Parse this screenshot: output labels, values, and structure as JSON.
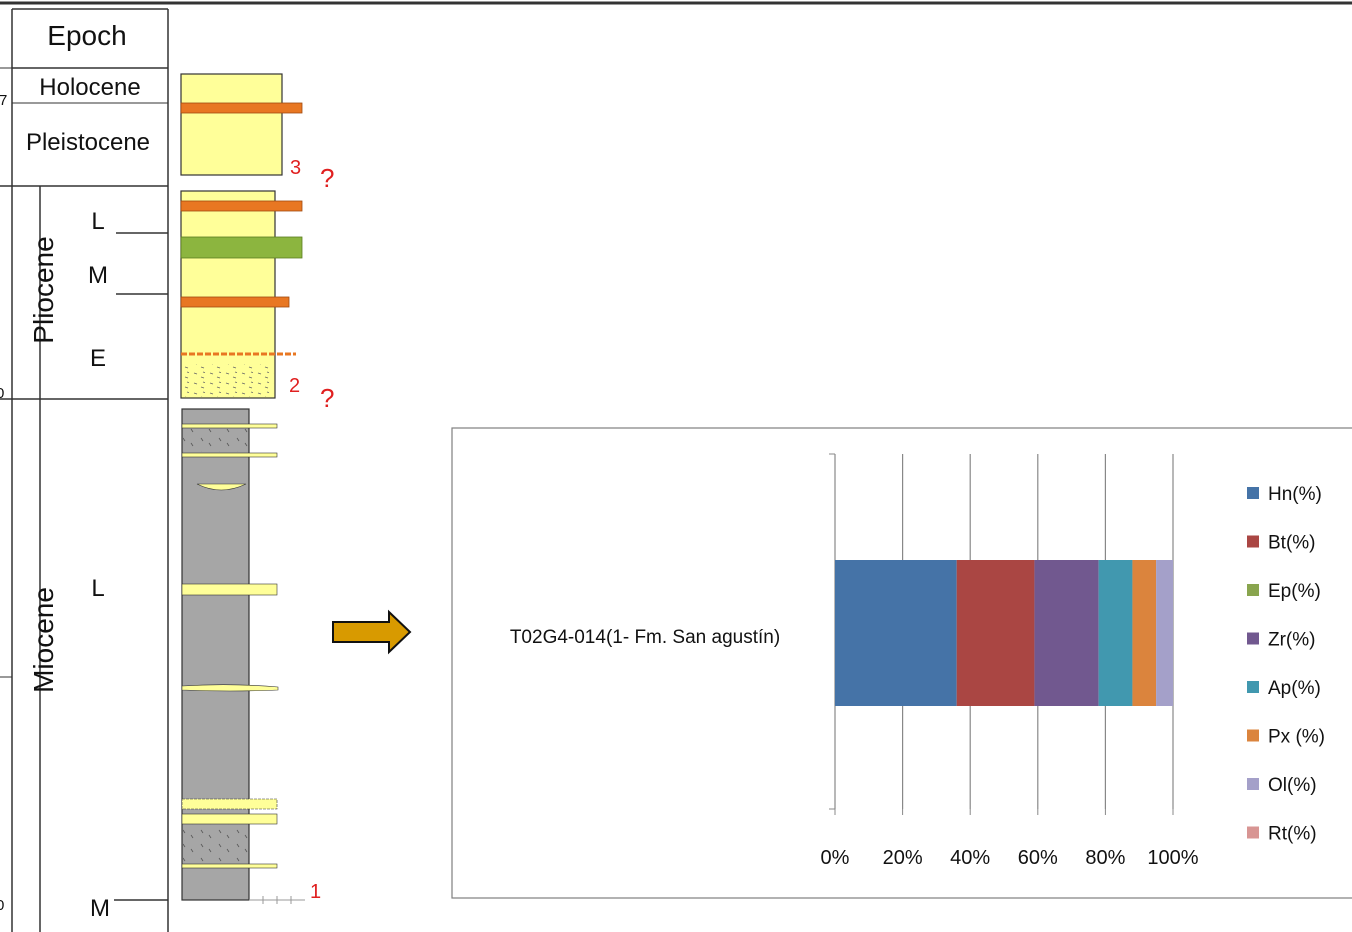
{
  "stratigraphy": {
    "header": "Epoch",
    "left_edge_digits": [
      "7",
      "0",
      "0"
    ],
    "epochs": [
      {
        "name": "Holocene"
      },
      {
        "name": "Pleistocene"
      },
      {
        "name": "Pliocene",
        "subdivisions": [
          "L",
          "M",
          "E"
        ]
      },
      {
        "name": "Miocene",
        "subdivisions": [
          "L",
          "M"
        ]
      }
    ],
    "sample_markers": [
      "3",
      "2",
      "1"
    ],
    "query_marks": [
      "?",
      "?"
    ],
    "colors": {
      "sand": "#ffff99",
      "shale": "#a6a6a6",
      "orange_band": "#e87722",
      "green_band": "#8cb53f",
      "marker_text": "#e02020"
    }
  },
  "arrow": {
    "color": "#d89a00",
    "direction": "right"
  },
  "chart_data": {
    "type": "bar",
    "orientation": "horizontal",
    "stacked": "percent",
    "categories": [
      "T02G4-014(1- Fm. San agustín)"
    ],
    "series": [
      {
        "name": "Hn(%)",
        "values": [
          36
        ],
        "color": "#4573a7"
      },
      {
        "name": "Bt(%)",
        "values": [
          23
        ],
        "color": "#aa4643"
      },
      {
        "name": "Ep(%)",
        "values": [
          0
        ],
        "color": "#89a54e"
      },
      {
        "name": "Zr(%)",
        "values": [
          19
        ],
        "color": "#71588f"
      },
      {
        "name": "Ap(%)",
        "values": [
          10
        ],
        "color": "#4198af"
      },
      {
        "name": "Px (%)",
        "values": [
          7
        ],
        "color": "#db843d"
      },
      {
        "name": "Ol(%)",
        "values": [
          5
        ],
        "color": "#a4a0c9"
      },
      {
        "name": "Rt(%)",
        "values": [
          0
        ],
        "color": "#d89593"
      }
    ],
    "xlim": [
      0,
      100
    ],
    "x_ticks": [
      "0%",
      "20%",
      "40%",
      "60%",
      "80%",
      "100%"
    ],
    "grid": true,
    "legend": "right",
    "title": "",
    "xlabel": "",
    "ylabel": ""
  }
}
